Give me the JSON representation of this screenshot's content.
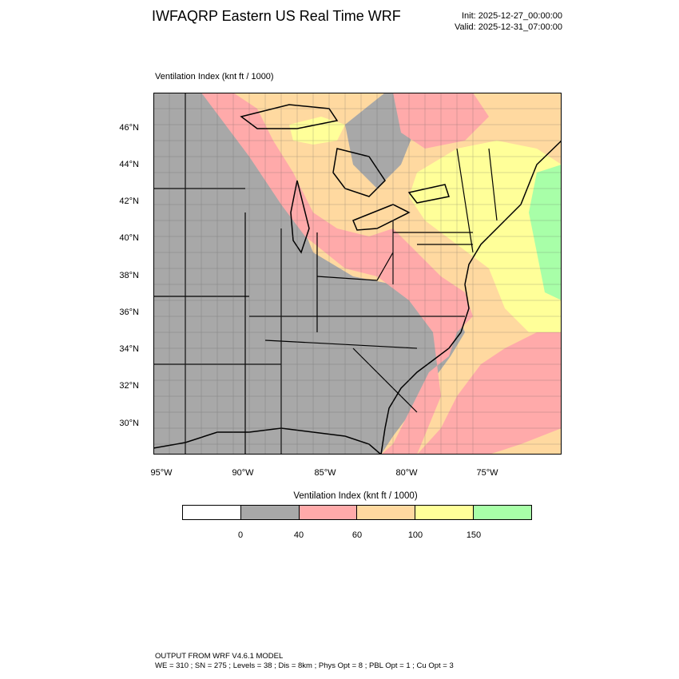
{
  "header": {
    "title": "IWFAQRP Eastern US Real Time WRF",
    "init": "Init: 2025-12-27_00:00:00",
    "valid": "Valid: 2025-12-31_07:00:00"
  },
  "map": {
    "variable_label": "Ventilation Index   (knt ft / 1000)",
    "lat_labels": [
      "46°N",
      "44°N",
      "42°N",
      "40°N",
      "38°N",
      "36°N",
      "34°N",
      "32°N",
      "30°N"
    ],
    "lon_labels": [
      "95°W",
      "90°W",
      "85°W",
      "80°W",
      "75°W"
    ]
  },
  "colorbar": {
    "title": "Ventilation Index  (knt ft / 1000)",
    "bins": [
      {
        "color": "#ffffff"
      },
      {
        "color": "#a8a8a8"
      },
      {
        "color": "#ffaaaa"
      },
      {
        "color": "#ffd9a0"
      },
      {
        "color": "#ffff99"
      },
      {
        "color": "#a8ffa8"
      }
    ],
    "tick_labels": [
      "0",
      "40",
      "60",
      "100",
      "150"
    ]
  },
  "footer": {
    "line1": "OUTPUT FROM WRF V4.6.1 MODEL",
    "line2": "WE = 310 ; SN = 275 ; Levels = 38 ; Dis = 8km ; Phys Opt = 8 ; PBL Opt = 1 ; Cu Opt = 3"
  }
}
